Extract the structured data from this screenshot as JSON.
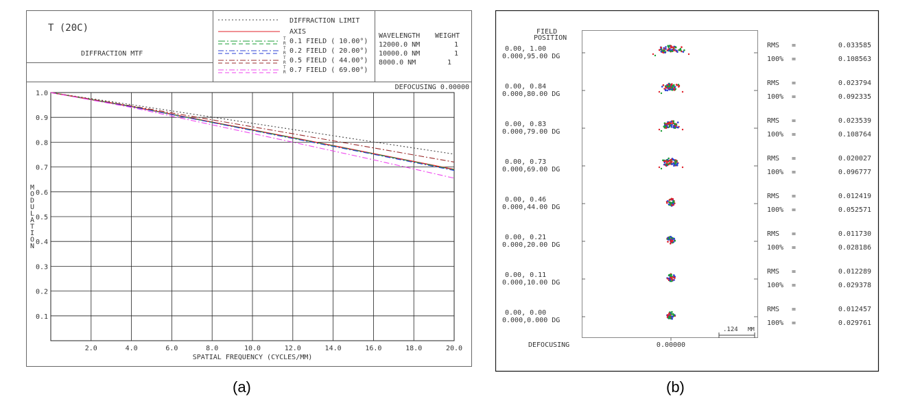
{
  "mtf": {
    "title": "T (20C)",
    "subtitle": "DIFFRACTION MTF",
    "legend": [
      {
        "label": "DIFFRACTION LIMIT",
        "color": "#444444",
        "dash": "2,3"
      },
      {
        "label": "AXIS",
        "color": "#e0202a",
        "dash": ""
      },
      {
        "label": "0.1 FIELD ( 10.00°)",
        "color": "#1a9c33",
        "dash": "10,3,2,3"
      },
      {
        "label": "0.2 FIELD ( 20.00°)",
        "color": "#2a3fd6",
        "dash": "8,3,2,3"
      },
      {
        "label": "0.5 FIELD ( 44.00°)",
        "color": "#9a2b2b",
        "dash": "8,3,2,3"
      },
      {
        "label": "0.7 FIELD ( 69.00°)",
        "color": "#ee44ee",
        "dash": "8,3,2,3"
      }
    ],
    "tr_marks": [
      "T",
      "R"
    ],
    "wavelength_header": "WAVELENGTH",
    "weight_header": "WEIGHT",
    "wavelengths": [
      {
        "wl": "12000.0 NM",
        "weight": "1"
      },
      {
        "wl": "10000.0 NM",
        "weight": "1"
      },
      {
        "wl": "8000.0 NM",
        "weight": "1"
      }
    ],
    "defocusing": "DEFOCUSING 0.00000"
  },
  "chart_data": [
    {
      "type": "line",
      "xlabel": "SPATIAL FREQUENCY (CYCLES/MM)",
      "ylabel": "MODULATION",
      "xlim": [
        0,
        20
      ],
      "ylim": [
        0,
        1
      ],
      "xticks": [
        "2.0",
        "4.0",
        "6.0",
        "8.0",
        "10.0",
        "12.0",
        "14.0",
        "16.0",
        "18.0",
        "20.0"
      ],
      "yticks": [
        "0.1",
        "0.2",
        "0.3",
        "0.4",
        "0.5",
        "0.6",
        "0.7",
        "0.8",
        "0.9",
        "1.0"
      ],
      "grid": true,
      "series": [
        {
          "name": "DIFFRACTION LIMIT",
          "x": [
            0,
            4,
            8,
            12,
            16,
            20
          ],
          "y": [
            1.0,
            0.951,
            0.901,
            0.851,
            0.801,
            0.752
          ]
        },
        {
          "name": "AXIS",
          "x": [
            0,
            4,
            8,
            12,
            16,
            20
          ],
          "y": [
            1.0,
            0.944,
            0.881,
            0.818,
            0.754,
            0.69
          ]
        },
        {
          "name": "0.1 FIELD ( 10.00°)",
          "x": [
            0,
            4,
            8,
            12,
            16,
            20
          ],
          "y": [
            1.0,
            0.944,
            0.88,
            0.817,
            0.753,
            0.689
          ]
        },
        {
          "name": "0.2 FIELD ( 20.00°)",
          "x": [
            0,
            4,
            8,
            12,
            16,
            20
          ],
          "y": [
            1.0,
            0.943,
            0.879,
            0.815,
            0.751,
            0.686
          ]
        },
        {
          "name": "0.5 FIELD ( 44.00°)",
          "x": [
            0,
            4,
            8,
            12,
            16,
            20
          ],
          "y": [
            1.0,
            0.946,
            0.89,
            0.834,
            0.777,
            0.72
          ]
        },
        {
          "name": "0.7 FIELD ( 69.00°)",
          "x": [
            0,
            4,
            8,
            12,
            16,
            20
          ],
          "y": [
            1.0,
            0.94,
            0.87,
            0.8,
            0.729,
            0.655
          ]
        }
      ]
    }
  ],
  "spot": {
    "header_line1": "FIELD",
    "header_line2": "POSITION",
    "fields": [
      {
        "pos": "0.00, 1.00",
        "angle": "0.000,95.00 DG",
        "rms": "0.033585",
        "p100": "0.108563"
      },
      {
        "pos": "0.00, 0.84",
        "angle": "0.000,80.00 DG",
        "rms": "0.023794",
        "p100": "0.092335"
      },
      {
        "pos": "0.00, 0.83",
        "angle": "0.000,79.00 DG",
        "rms": "0.023539",
        "p100": "0.108764"
      },
      {
        "pos": "0.00, 0.73",
        "angle": "0.000,69.00 DG",
        "rms": "0.020027",
        "p100": "0.096777"
      },
      {
        "pos": "0.00, 0.46",
        "angle": "0.000,44.00 DG",
        "rms": "0.012419",
        "p100": "0.052571"
      },
      {
        "pos": "0.00, 0.21",
        "angle": "0.000,20.00 DG",
        "rms": "0.011730",
        "p100": "0.028186"
      },
      {
        "pos": "0.00, 0.11",
        "angle": "0.000,10.00 DG",
        "rms": "0.012289",
        "p100": "0.029378"
      },
      {
        "pos": "0.00, 0.00",
        "angle": "0.000,0.000 DG",
        "rms": "0.012457",
        "p100": "0.029761"
      }
    ],
    "rms_label": "RMS",
    "p100_label": "100%",
    "eq": "=",
    "scale_value": ".124",
    "scale_unit": "MM",
    "defocusing_label": "DEFOCUSING",
    "defocusing_value": "0.00000",
    "spot_colors": [
      "#e0202a",
      "#1a9c33",
      "#2a3fd6"
    ]
  },
  "captions": {
    "a": "(a)",
    "b": "(b)"
  }
}
